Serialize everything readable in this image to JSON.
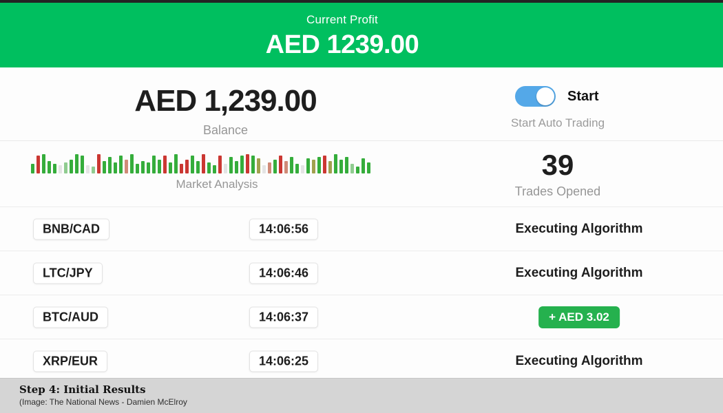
{
  "banner": {
    "label": "Current Profit",
    "amount": "AED 1239.00"
  },
  "balance": {
    "amount": "AED 1,239.00",
    "label": "Balance"
  },
  "auto_trading": {
    "toggle_label": "Start",
    "toggle_state": "on",
    "caption": "Start Auto Trading"
  },
  "market": {
    "label": "Market Analysis",
    "bars": [
      [
        14,
        "g"
      ],
      [
        26,
        "r"
      ],
      [
        28,
        "g"
      ],
      [
        18,
        "g"
      ],
      [
        14,
        "g"
      ],
      [
        12,
        "e"
      ],
      [
        16,
        "f"
      ],
      [
        20,
        "g"
      ],
      [
        28,
        "g"
      ],
      [
        26,
        "g"
      ],
      [
        12,
        "e"
      ],
      [
        10,
        "f"
      ],
      [
        28,
        "r"
      ],
      [
        18,
        "g"
      ],
      [
        24,
        "g"
      ],
      [
        16,
        "g"
      ],
      [
        26,
        "g"
      ],
      [
        20,
        "s"
      ],
      [
        28,
        "g"
      ],
      [
        14,
        "g"
      ],
      [
        18,
        "g"
      ],
      [
        16,
        "g"
      ],
      [
        26,
        "g"
      ],
      [
        20,
        "g"
      ],
      [
        26,
        "r"
      ],
      [
        16,
        "g"
      ],
      [
        28,
        "g"
      ],
      [
        14,
        "r"
      ],
      [
        20,
        "r"
      ],
      [
        26,
        "g"
      ],
      [
        18,
        "g"
      ],
      [
        28,
        "r"
      ],
      [
        16,
        "g"
      ],
      [
        12,
        "g"
      ],
      [
        26,
        "r"
      ],
      [
        14,
        "e"
      ],
      [
        24,
        "g"
      ],
      [
        18,
        "g"
      ],
      [
        26,
        "g"
      ],
      [
        28,
        "r"
      ],
      [
        26,
        "g"
      ],
      [
        22,
        "o"
      ],
      [
        12,
        "e"
      ],
      [
        16,
        "s"
      ],
      [
        20,
        "g"
      ],
      [
        26,
        "r"
      ],
      [
        18,
        "s"
      ],
      [
        24,
        "g"
      ],
      [
        14,
        "g"
      ],
      [
        12,
        "e"
      ],
      [
        22,
        "g"
      ],
      [
        20,
        "o"
      ],
      [
        24,
        "g"
      ],
      [
        26,
        "r"
      ],
      [
        18,
        "o"
      ],
      [
        28,
        "g"
      ],
      [
        20,
        "g"
      ],
      [
        24,
        "g"
      ],
      [
        14,
        "f"
      ],
      [
        10,
        "g"
      ],
      [
        22,
        "g"
      ],
      [
        16,
        "g"
      ]
    ]
  },
  "trades": {
    "count": "39",
    "label": "Trades Opened"
  },
  "table": {
    "rows": [
      {
        "pair": "BNB/CAD",
        "time": "14:06:56",
        "status": "Executing Algorithm",
        "status_type": "executing"
      },
      {
        "pair": "LTC/JPY",
        "time": "14:06:46",
        "status": "Executing Algorithm",
        "status_type": "executing"
      },
      {
        "pair": "BTC/AUD",
        "time": "14:06:37",
        "status": "+ AED 3.02",
        "status_type": "profit"
      },
      {
        "pair": "XRP/EUR",
        "time": "14:06:25",
        "status": "Executing Algorithm",
        "status_type": "executing"
      }
    ]
  },
  "caption": {
    "title": "Step 4: Initial Results",
    "credit": "(Image:  The National News - Damien McElroy"
  },
  "colors": {
    "banner_green": "#00bf5f",
    "profit_green": "#25b14e",
    "toggle_blue": "#54a8e8",
    "bar_palette": {
      "g": "#35ad3b",
      "r": "#cb3732",
      "o": "#a1a14e",
      "s": "#d08a77",
      "e": "#e4e4e4",
      "f": "#90cc90"
    }
  }
}
